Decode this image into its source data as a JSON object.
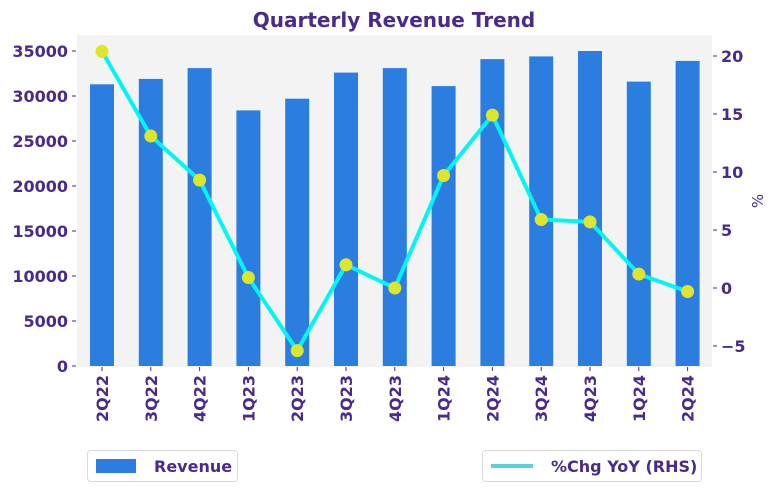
{
  "chart_data": {
    "type": "bar",
    "title": "Quarterly Revenue Trend",
    "categories": [
      "2Q22",
      "3Q22",
      "4Q22",
      "1Q23",
      "2Q23",
      "3Q23",
      "4Q23",
      "1Q24",
      "2Q24",
      "3Q24",
      "4Q23",
      "1Q24",
      "2Q24"
    ],
    "series": [
      {
        "name": "Revenue",
        "type": "bar",
        "axis": "left",
        "color": "#2b7de0",
        "values": [
          31300,
          31900,
          33100,
          28400,
          29700,
          32600,
          33100,
          31100,
          34100,
          34400,
          35000,
          31600,
          33900
        ]
      },
      {
        "name": "%Chg YoY (RHS)",
        "type": "line",
        "axis": "right",
        "color": "#00f5f5",
        "marker_color": "#dde62a",
        "legend_color": "#5bd0dc",
        "values": [
          20.4,
          13.1,
          9.3,
          0.9,
          -5.4,
          2.0,
          0.0,
          9.7,
          14.9,
          5.9,
          5.7,
          1.2,
          -0.3
        ]
      }
    ],
    "xlabel": "",
    "ylabel": "",
    "y2label": "%",
    "ylim": [
      0,
      36700
    ],
    "y2lim": [
      -6.8,
      21.7
    ],
    "yticks": [
      0,
      5000,
      10000,
      15000,
      20000,
      25000,
      30000,
      35000
    ],
    "ytick_labels": [
      "0",
      "5000",
      "10000",
      "15000",
      "20000",
      "25000",
      "30000",
      "35000"
    ],
    "y2ticks": [
      -5,
      0,
      5,
      10,
      15,
      20
    ],
    "y2tick_labels": [
      "−5",
      "0",
      "5",
      "10",
      "15",
      "20"
    ],
    "grid": false,
    "plot_background": "#f3f3f3",
    "text_color": "#4a2a8a",
    "legend": [
      {
        "label": "Revenue",
        "placement": "bottom-left"
      },
      {
        "label": "%Chg YoY (RHS)",
        "placement": "bottom-right"
      }
    ]
  }
}
